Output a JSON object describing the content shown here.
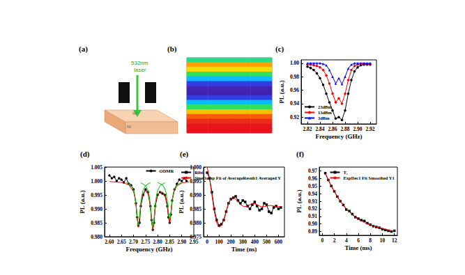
{
  "diagram": {
    "label": "(a)",
    "laser": [
      "532nm",
      "laser"
    ],
    "nv_labels": [
      "NV",
      "NV"
    ]
  },
  "chart_data": [
    {
      "type": "heatmap",
      "label": "(b)",
      "tick_labels": false,
      "color_range": [
        0,
        1
      ],
      "cells": [
        [
          0.45,
          0.45,
          0.45,
          0.45
        ],
        [
          0.8,
          0.8,
          0.8,
          0.8
        ],
        [
          0.7,
          0.7,
          0.7,
          0.7
        ],
        [
          0.5,
          0.5,
          0.5,
          0.5
        ],
        [
          0.3,
          0.3,
          0.3,
          0.3
        ],
        [
          0.12,
          0.12,
          0.12,
          0.12
        ],
        [
          0.05,
          0.05,
          0.05,
          0.05
        ],
        [
          0.04,
          0.04,
          0.04,
          0.04
        ],
        [
          0.12,
          0.12,
          0.12,
          0.12
        ],
        [
          0.3,
          0.3,
          0.3,
          0.3
        ],
        [
          0.5,
          0.5,
          0.5,
          0.5
        ],
        [
          0.75,
          0.75,
          0.75,
          0.75
        ],
        [
          0.9,
          0.9,
          0.9,
          0.9
        ],
        [
          0.97,
          0.97,
          0.97,
          0.97
        ],
        [
          1.0,
          1.0,
          1.0,
          1.0
        ],
        [
          1.0,
          1.0,
          1.0,
          1.0
        ]
      ]
    },
    {
      "type": "line",
      "label": "(c)",
      "xlabel": "Frequency (GHz)",
      "ylabel": "PL (a.u.)",
      "grid": false,
      "legend": "lower left",
      "xlim": [
        2.81,
        2.93
      ],
      "xticks": [
        2.82,
        2.84,
        2.86,
        2.88,
        {
          "value": 2.9,
          "label": "2.90"
        },
        2.92
      ],
      "ylim": [
        0.91,
        1.005
      ],
      "yticks": [
        0.92,
        0.94,
        0.96,
        0.98,
        {
          "value": 1.0,
          "label": "1.00"
        }
      ],
      "x": [
        2.82,
        2.825,
        2.83,
        2.835,
        2.84,
        2.845,
        2.85,
        2.855,
        2.86,
        2.865,
        2.87,
        2.875,
        2.88,
        2.885,
        2.89,
        2.895,
        2.9,
        2.905,
        2.91,
        2.915,
        2.92
      ],
      "series": [
        {
          "name": "23dBm",
          "color": "#000000",
          "marker": "circle",
          "line_style": "solid",
          "values": [
            0.995,
            0.993,
            0.99,
            0.985,
            0.978,
            0.968,
            0.955,
            0.942,
            0.93,
            0.918,
            0.92,
            0.916,
            0.93,
            0.955,
            0.975,
            0.988,
            0.994,
            0.997,
            0.998,
            0.998,
            0.998
          ]
        },
        {
          "name": "13dBm",
          "color": "#ff0000",
          "marker": "circle",
          "line_style": "solid",
          "values": [
            0.998,
            0.998,
            0.997,
            0.996,
            0.994,
            0.99,
            0.982,
            0.97,
            0.955,
            0.942,
            0.948,
            0.94,
            0.955,
            0.975,
            0.99,
            0.996,
            0.998,
            0.999,
            0.999,
            0.999,
            0.999
          ]
        },
        {
          "name": "3dBm",
          "color": "#0000ff",
          "marker": "triangle",
          "line_style": "solid",
          "values": [
            1.0,
            1.0,
            1.0,
            1.0,
            1.0,
            0.999,
            0.997,
            0.99,
            0.98,
            0.97,
            0.978,
            0.969,
            0.98,
            0.992,
            0.998,
            1.0,
            1.0,
            1.0,
            1.0,
            1.0,
            1.0
          ]
        }
      ]
    },
    {
      "type": "line",
      "label": "(d)",
      "xlabel": "Frequency (GHz)",
      "ylabel": "PL (a.u.)",
      "grid": false,
      "legend": "upper center",
      "xlim": [
        2.58,
        2.95
      ],
      "xticks": [
        {
          "value": 2.6,
          "label": "2.60"
        },
        2.65,
        {
          "value": 2.7,
          "label": "2.70"
        },
        2.75,
        {
          "value": 2.8,
          "label": "2.80"
        },
        2.85,
        {
          "value": 2.9,
          "label": "2.90"
        },
        2.95
      ],
      "ylim": [
        0.98,
        1.005
      ],
      "yticks": [
        {
          "value": 0.98,
          "label": "0.980"
        },
        0.985,
        {
          "value": 0.99,
          "label": "0.990"
        },
        0.995,
        {
          "value": 1.0,
          "label": "1.000"
        },
        1.005
      ],
      "series": [
        {
          "name": "ODMR",
          "color": "#000000",
          "marker": "circle",
          "line_style": "solid",
          "x": [
            2.6,
            2.61,
            2.62,
            2.63,
            2.64,
            2.65,
            2.66,
            2.67,
            2.68,
            2.69,
            2.7,
            2.71,
            2.715,
            2.72,
            2.725,
            2.73,
            2.74,
            2.75,
            2.76,
            2.77,
            2.775,
            2.78,
            2.785,
            2.79,
            2.8,
            2.81,
            2.82,
            2.83,
            2.84,
            2.845,
            2.85,
            2.855,
            2.86,
            2.87,
            2.88,
            2.89,
            2.9,
            2.91,
            2.92
          ],
          "values": [
            1.002,
            1.001,
            1.0015,
            1.0,
            1.001,
            1.0005,
            0.9995,
            1.001,
            0.999,
            0.9985,
            0.997,
            0.992,
            0.987,
            0.984,
            0.985,
            0.991,
            0.995,
            0.997,
            0.996,
            0.991,
            0.986,
            0.9825,
            0.985,
            0.991,
            0.995,
            0.996,
            0.9955,
            0.995,
            0.991,
            0.987,
            0.985,
            0.988,
            0.993,
            0.997,
            0.999,
            1.0005,
            1.0,
            1.001,
            1.0
          ]
        },
        {
          "color": "#ff0000",
          "marker": "none",
          "line_style": "solid",
          "x": [
            2.6,
            2.65,
            2.68,
            2.7,
            2.705,
            2.71,
            2.715,
            2.72,
            2.725,
            2.73,
            2.735,
            2.74,
            2.75,
            2.76,
            2.765,
            2.77,
            2.775,
            2.78,
            2.785,
            2.79,
            2.795,
            2.8,
            2.81,
            2.82,
            2.83,
            2.835,
            2.84,
            2.845,
            2.85,
            2.855,
            2.86,
            2.865,
            2.87,
            2.88,
            2.9,
            2.93
          ],
          "values": [
            0.9998,
            0.9995,
            0.9987,
            0.9962,
            0.9945,
            0.9915,
            0.9866,
            0.9834,
            0.9866,
            0.9912,
            0.994,
            0.9955,
            0.9965,
            0.9955,
            0.9937,
            0.9907,
            0.9856,
            0.9822,
            0.9855,
            0.9905,
            0.9935,
            0.995,
            0.996,
            0.996,
            0.995,
            0.9937,
            0.9912,
            0.9872,
            0.9847,
            0.988,
            0.9925,
            0.9952,
            0.9968,
            0.9982,
            0.9993,
            0.9997
          ]
        },
        {
          "color": "#00c000",
          "marker": "none",
          "line_style": "solid",
          "x": [
            2.67,
            2.69,
            2.7,
            2.705,
            2.71,
            2.715,
            2.72,
            2.725,
            2.73,
            2.735,
            2.74,
            2.75,
            2.77
          ],
          "values": [
            0.9994,
            0.9984,
            0.9968,
            0.995,
            0.992,
            0.9872,
            0.984,
            0.9872,
            0.992,
            0.995,
            0.9968,
            0.9984,
            0.9994
          ]
        },
        {
          "color": "#00c000",
          "marker": "none",
          "line_style": "solid",
          "x": [
            2.73,
            2.75,
            2.76,
            2.765,
            2.77,
            2.775,
            2.78,
            2.785,
            2.79,
            2.795,
            2.8,
            2.81,
            2.83
          ],
          "values": [
            0.9994,
            0.9983,
            0.9966,
            0.9947,
            0.9915,
            0.9864,
            0.983,
            0.9864,
            0.9915,
            0.9947,
            0.9966,
            0.9983,
            0.9994
          ]
        },
        {
          "color": "#00c000",
          "marker": "none",
          "line_style": "solid",
          "x": [
            2.8,
            2.82,
            2.83,
            2.835,
            2.84,
            2.845,
            2.85,
            2.855,
            2.86,
            2.865,
            2.87,
            2.88,
            2.9
          ],
          "values": [
            0.9995,
            0.9986,
            0.9972,
            0.9957,
            0.993,
            0.9888,
            0.986,
            0.9888,
            0.993,
            0.9957,
            0.9972,
            0.9986,
            0.9995
          ]
        }
      ]
    },
    {
      "type": "line",
      "label": "(e)",
      "xlabel": "Time (ns)",
      "ylabel": "PL (a.u.)",
      "grid": false,
      "legend": "upper right",
      "xlim": [
        -30,
        650
      ],
      "xticks": [
        0,
        100,
        200,
        300,
        400,
        500,
        600
      ],
      "ylim": [
        0.975,
        1.0
      ],
      "yticks": [
        0.975,
        {
          "value": 0.98,
          "label": "0.980"
        },
        0.985,
        {
          "value": 0.99,
          "label": "0.990"
        },
        0.995,
        {
          "value": 1.0,
          "label": "1.000"
        }
      ],
      "series": [
        {
          "name": "Ribi",
          "color": "#000000",
          "marker": "square",
          "line_style": "solid",
          "x": [
            0,
            20,
            40,
            60,
            80,
            100,
            120,
            140,
            160,
            180,
            200,
            220,
            240,
            260,
            280,
            300,
            320,
            340,
            360,
            380,
            400,
            420,
            440,
            460,
            480,
            500,
            520,
            540,
            560,
            580,
            600,
            620
          ],
          "values": [
            0.998,
            0.996,
            0.991,
            0.985,
            0.981,
            0.979,
            0.9795,
            0.981,
            0.984,
            0.987,
            0.9885,
            0.989,
            0.9895,
            0.988,
            0.987,
            0.988,
            0.9875,
            0.986,
            0.985,
            0.9865,
            0.9875,
            0.986,
            0.9845,
            0.985,
            0.987,
            0.9865,
            0.984,
            0.9835,
            0.9855,
            0.986,
            0.985,
            0.9855
          ]
        },
        {
          "name": "SineDamp Fit of AverageResult1 Averaged Y",
          "color": "#ff0000",
          "marker": "none",
          "line_style": "solid",
          "x": [
            0,
            20,
            40,
            60,
            80,
            100,
            120,
            140,
            160,
            180,
            200,
            220,
            240,
            260,
            280,
            300,
            320,
            340,
            360,
            380,
            400,
            420,
            440,
            460,
            480,
            500,
            520,
            540,
            560,
            580,
            600,
            620
          ],
          "values": [
            1.0,
            0.996,
            0.99,
            0.984,
            0.98,
            0.9785,
            0.979,
            0.981,
            0.984,
            0.987,
            0.9885,
            0.989,
            0.9885,
            0.9875,
            0.9865,
            0.986,
            0.9858,
            0.986,
            0.9865,
            0.987,
            0.9868,
            0.9865,
            0.986,
            0.9858,
            0.9858,
            0.986,
            0.9862,
            0.9862,
            0.986,
            0.9858,
            0.9858,
            0.9859
          ]
        }
      ]
    },
    {
      "type": "line",
      "label": "(f)",
      "xlabel": "Time (ms)",
      "ylabel": "PL (a.u.)",
      "grid": false,
      "legend": "upper right",
      "xlim": [
        -0.5,
        12.5
      ],
      "xticks": [
        0,
        2,
        4,
        6,
        8,
        10,
        12
      ],
      "ylim": [
        0.885,
        0.975
      ],
      "yticks": [
        0.89,
        {
          "value": 0.9,
          "label": "0.90"
        },
        0.91,
        0.92,
        0.93,
        0.94,
        0.95,
        0.96,
        0.97
      ],
      "series": [
        {
          "name": "T₂",
          "color": "#000000",
          "marker": "square",
          "line_style": "solid",
          "x": [
            0.5,
            1,
            1.5,
            2,
            2.5,
            3,
            3.5,
            4,
            4.5,
            5,
            5.5,
            6,
            6.5,
            7,
            7.5,
            8,
            8.5,
            9,
            9.5,
            10,
            10.5,
            11,
            11.5,
            12
          ],
          "values": [
            0.967,
            0.958,
            0.95,
            0.943,
            0.936,
            0.93,
            0.925,
            0.919,
            0.917,
            0.913,
            0.909,
            0.907,
            0.905,
            0.904,
            0.901,
            0.899,
            0.897,
            0.896,
            0.895,
            0.893,
            0.892,
            0.891,
            0.89,
            0.891
          ]
        },
        {
          "name": "ExpDec1 Fit Smoothed Y1",
          "color": "#ff0000",
          "marker": "none",
          "line_style": "solid",
          "x": [
            0.5,
            1,
            1.5,
            2,
            2.5,
            3,
            3.5,
            4,
            4.5,
            5,
            5.5,
            6,
            6.5,
            7,
            7.5,
            8,
            8.5,
            9,
            9.5,
            10,
            10.5,
            11,
            11.5,
            12
          ],
          "values": [
            0.966,
            0.958,
            0.95,
            0.943,
            0.936,
            0.93,
            0.925,
            0.92,
            0.916,
            0.912,
            0.909,
            0.906,
            0.904,
            0.902,
            0.9,
            0.899,
            0.897,
            0.896,
            0.895,
            0.894,
            0.893,
            0.892,
            0.891,
            0.891
          ]
        }
      ]
    }
  ]
}
